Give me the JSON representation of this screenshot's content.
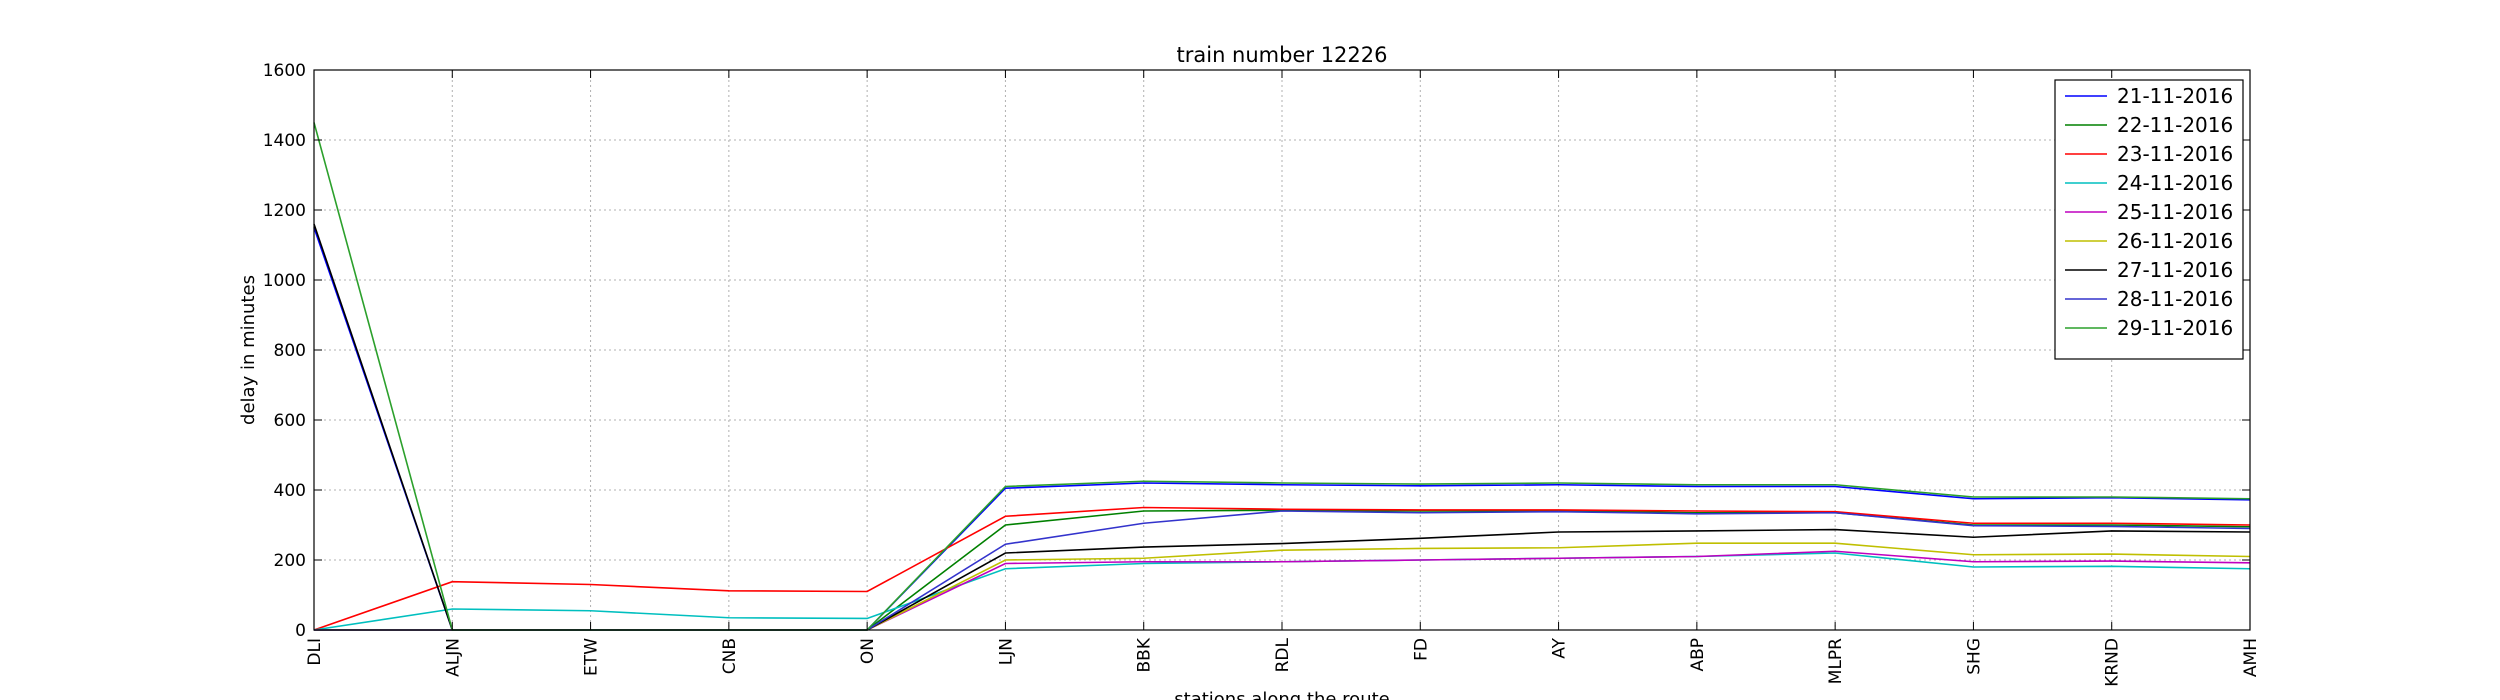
{
  "chart_data": {
    "type": "line",
    "title": "train number 12226",
    "xlabel": "stations along the route",
    "ylabel": "delay in minutes",
    "categories": [
      "DLI",
      "ALJN",
      "ETW",
      "CNB",
      "ON",
      "LJN",
      "BBK",
      "RDL",
      "FD",
      "AY",
      "ABP",
      "MLPR",
      "SHG",
      "KRND",
      "AMH"
    ],
    "ylim": [
      0,
      1600
    ],
    "yticks": [
      0,
      200,
      400,
      600,
      800,
      1000,
      1200,
      1400,
      1600
    ],
    "grid": true,
    "legend_position": "top-right",
    "series": [
      {
        "name": "21-11-2016",
        "color": "#0000ff",
        "values": [
          1150,
          0,
          0,
          0,
          0,
          405,
          420,
          415,
          412,
          415,
          410,
          410,
          375,
          378,
          372
        ]
      },
      {
        "name": "22-11-2016",
        "color": "#008000",
        "values": [
          0,
          0,
          0,
          0,
          0,
          300,
          340,
          342,
          340,
          340,
          335,
          335,
          300,
          300,
          295
        ]
      },
      {
        "name": "23-11-2016",
        "color": "#ff0000",
        "values": [
          0,
          138,
          130,
          112,
          110,
          325,
          350,
          345,
          343,
          343,
          340,
          338,
          305,
          305,
          300
        ]
      },
      {
        "name": "24-11-2016",
        "color": "#00bfbf",
        "values": [
          0,
          60,
          55,
          35,
          33,
          175,
          190,
          195,
          200,
          205,
          210,
          220,
          180,
          182,
          175
        ]
      },
      {
        "name": "25-11-2016",
        "color": "#bf00bf",
        "values": [
          0,
          0,
          0,
          0,
          0,
          190,
          195,
          195,
          200,
          205,
          210,
          225,
          195,
          197,
          192
        ]
      },
      {
        "name": "26-11-2016",
        "color": "#bfbf00",
        "values": [
          0,
          0,
          0,
          0,
          0,
          200,
          205,
          228,
          233,
          235,
          248,
          248,
          215,
          217,
          210
        ]
      },
      {
        "name": "27-11-2016",
        "color": "#000000",
        "values": [
          1160,
          0,
          0,
          0,
          0,
          220,
          237,
          247,
          262,
          280,
          283,
          287,
          265,
          283,
          280
        ]
      },
      {
        "name": "28-11-2016",
        "color": "#3333cc",
        "values": [
          0,
          0,
          0,
          0,
          0,
          245,
          305,
          340,
          335,
          338,
          332,
          335,
          298,
          296,
          290
        ]
      },
      {
        "name": "29-11-2016",
        "color": "#2ca02c",
        "values": [
          1450,
          0,
          0,
          0,
          0,
          410,
          425,
          420,
          417,
          420,
          415,
          415,
          380,
          380,
          375
        ]
      }
    ]
  }
}
